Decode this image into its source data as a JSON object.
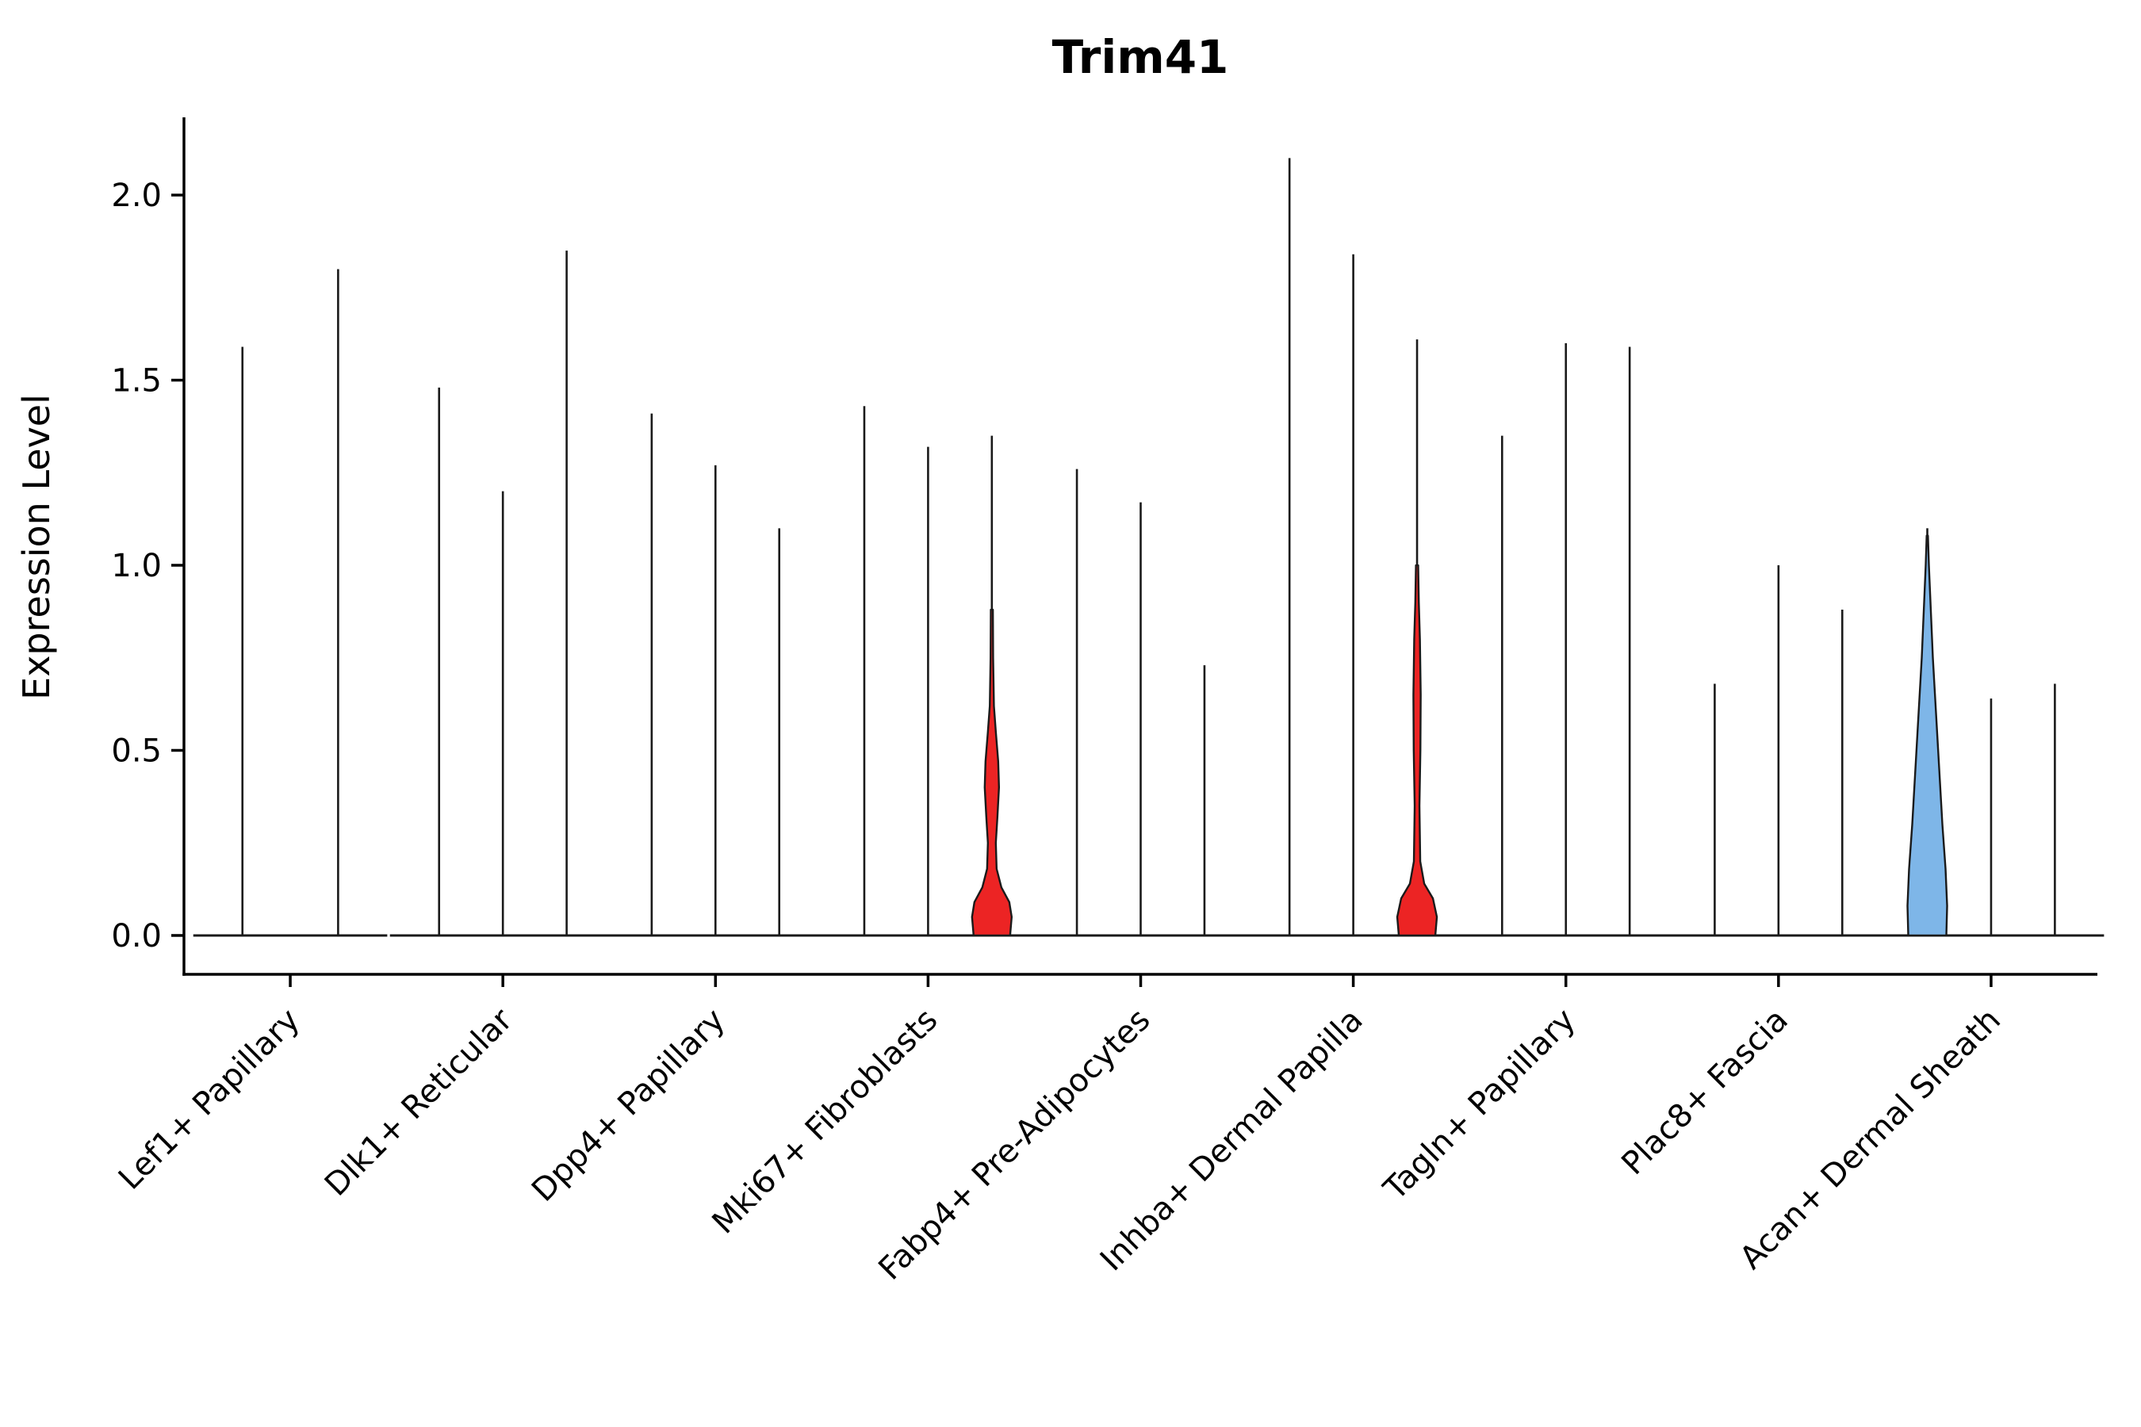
{
  "title": "Trim41",
  "ylabel": "Expression Level",
  "chart_data": {
    "type": "violin",
    "title": "Trim41",
    "xlabel": "",
    "ylabel": "Expression Level",
    "ylim": [
      -0.105,
      2.21
    ],
    "yticks": [
      0.0,
      0.5,
      1.0,
      1.5,
      2.0
    ],
    "ytick_labels": [
      "0.0",
      "0.5",
      "1.0",
      "1.5",
      "2.0"
    ],
    "grid": "off",
    "legend": "none",
    "colors": {
      "stroke": "#1a1a1a",
      "highlight_red": "#EC2424",
      "highlight_blue": "#7EB6E8"
    },
    "categories": [
      "Lef1+ Papillary",
      "Dlk1+ Reticular",
      "Dpp4+ Papillary",
      "Mki67+ Fibroblasts",
      "Fabp4+ Pre-Adipocytes",
      "Inhba+ Dermal Papilla",
      "Tagln+ Papillary",
      "Plac8+ Fascia",
      "Acan+ Dermal Sheath"
    ],
    "groups": [
      {
        "category": "Lef1+ Papillary",
        "violins": [
          {
            "max": 1.59
          },
          {
            "max": 1.8
          }
        ]
      },
      {
        "category": "Dlk1+ Reticular",
        "violins": [
          {
            "max": 1.48
          },
          {
            "max": 1.2
          },
          {
            "max": 1.85
          }
        ]
      },
      {
        "category": "Dpp4+ Papillary",
        "violins": [
          {
            "max": 1.41
          },
          {
            "max": 1.27
          },
          {
            "max": 1.1
          }
        ]
      },
      {
        "category": "Mki67+ Fibroblasts",
        "violins": [
          {
            "max": 1.43
          },
          {
            "max": 1.32
          },
          {
            "max": 1.35,
            "fill": "#EC2424",
            "profile": [
              [
                0,
                23
              ],
              [
                0.05,
                25
              ],
              [
                0.09,
                22
              ],
              [
                0.13,
                12
              ],
              [
                0.18,
                6
              ],
              [
                0.25,
                5
              ],
              [
                0.32,
                7
              ],
              [
                0.4,
                9
              ],
              [
                0.47,
                8
              ],
              [
                0.55,
                5
              ],
              [
                0.62,
                2.6
              ],
              [
                0.75,
                1.6
              ],
              [
                0.88,
                1.3
              ]
            ]
          }
        ]
      },
      {
        "category": "Fabp4+ Pre-Adipocytes",
        "violins": [
          {
            "max": 1.26
          },
          {
            "max": 1.17
          },
          {
            "max": 0.73
          }
        ]
      },
      {
        "category": "Inhba+ Dermal Papilla",
        "violins": [
          {
            "max": 2.1
          },
          {
            "max": 1.84
          },
          {
            "max": 1.61,
            "fill": "#EC2424",
            "profile": [
              [
                0,
                23
              ],
              [
                0.05,
                25
              ],
              [
                0.1,
                20
              ],
              [
                0.14,
                9
              ],
              [
                0.2,
                4
              ],
              [
                0.35,
                3
              ],
              [
                0.5,
                4.2
              ],
              [
                0.65,
                4.6
              ],
              [
                0.8,
                3.6
              ],
              [
                0.9,
                2.2
              ],
              [
                1.0,
                1.4
              ]
            ]
          }
        ]
      },
      {
        "category": "Tagln+ Papillary",
        "violins": [
          {
            "max": 1.35
          },
          {
            "max": 1.6
          },
          {
            "max": 1.59
          }
        ]
      },
      {
        "category": "Plac8+ Fascia",
        "violins": [
          {
            "max": 0.68
          },
          {
            "max": 1.0
          },
          {
            "max": 0.88
          }
        ]
      },
      {
        "category": "Acan+ Dermal Sheath",
        "violins": [
          {
            "max": 1.1,
            "fill": "#7EB6E8",
            "profile": [
              [
                0,
                24
              ],
              [
                0.08,
                25
              ],
              [
                0.18,
                23
              ],
              [
                0.3,
                19
              ],
              [
                0.45,
                15
              ],
              [
                0.6,
                11
              ],
              [
                0.75,
                7
              ],
              [
                0.9,
                4
              ],
              [
                1.0,
                2
              ],
              [
                1.08,
                0.8
              ]
            ]
          },
          {
            "max": 0.64
          },
          {
            "max": 0.68
          }
        ]
      }
    ]
  }
}
